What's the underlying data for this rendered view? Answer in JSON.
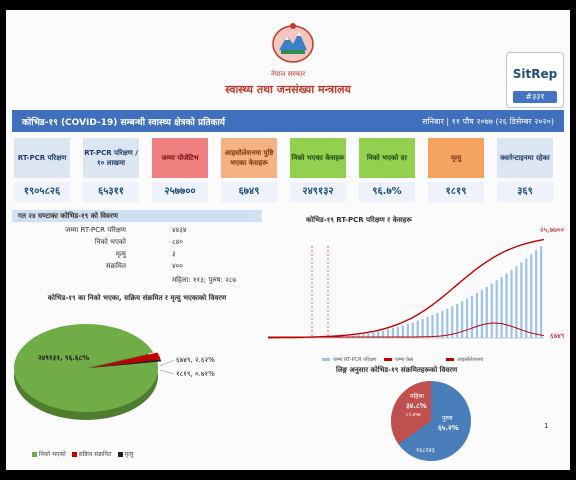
{
  "header": {
    "gov_label": "नेपाल सरकार",
    "ministry": "स्वास्थ्य तथा जनसंख्या मन्त्रालय",
    "sitrep_label": "SitRep",
    "sitrep_number": "#३३१"
  },
  "title_bar": {
    "title": "कोभिड-१९ (COVID-19) सम्बन्धी स्वास्थ्य क्षेत्रको प्रतिकार्य",
    "date": "सनिबार | ११ पौष २०७७ (२६ डिसेम्बर २०२०)"
  },
  "cards": [
    {
      "label": "RT-PCR परिक्षण",
      "value": "१९०५८२६",
      "bg": "#dce6f2",
      "fg": "#1f3d6b"
    },
    {
      "label": "RT-PCR परिक्षण /१० लाखमा",
      "value": "६५३११",
      "bg": "#dce6f2",
      "fg": "#1f3d6b"
    },
    {
      "label": "जम्मा पोजेटिभ",
      "value": "२५७७००",
      "bg": "#f08080",
      "fg": "#7a1010"
    },
    {
      "label": "आइसोलेशनमा पुष्टि भएका केसहरू",
      "value": "६७४९",
      "bg": "#f4b183",
      "fg": "#7a3b10"
    },
    {
      "label": "निको भएका केसहरू",
      "value": "२४९१३२",
      "bg": "#92d050",
      "fg": "#1f4d10"
    },
    {
      "label": "निको भएको दर",
      "value": "९६.७%",
      "bg": "#92d050",
      "fg": "#1f4d10"
    },
    {
      "label": "मृत्यु",
      "value": "१८१९",
      "bg": "#f4a460",
      "fg": "#7a3b10"
    },
    {
      "label": "क्वारेन्टाइनमा रहेका",
      "value": "३६९",
      "bg": "#dce6f2",
      "fg": "#1f3d6b"
    }
  ],
  "last24": {
    "title": "गत २४ घण्टाका कोभिड-१९ को विवरण",
    "rows": [
      {
        "k": "जम्मा RT-PCR परिक्षण",
        "v": "४४३४"
      },
      {
        "k": "निको भएको",
        "v": "८४०"
      },
      {
        "k": "मृत्यु",
        "v": "३"
      },
      {
        "k": "संक्रमित",
        "v": "४००"
      }
    ],
    "gender_note": "महिला: ११३; पुरुष: २८७"
  },
  "pie1": {
    "title": "कोभिड-१९ का निको भएका, सक्रिय संक्रमित र मृत्यु भएकाको विवरण",
    "labels": [
      "२४९१३२, ९६.६८%",
      "६७४९, २.६२%",
      "१८१९, ०.७१%"
    ],
    "legend": [
      "निको भएको",
      "सक्रिय संक्रमित",
      "मृत्यु"
    ],
    "colors": [
      "#70ad47",
      "#c00000",
      "#1f1f1f"
    ]
  },
  "line": {
    "title": "कोभिड-१९ RT-PCR परिक्षण र केसहरू",
    "end_label_top": "२५,७७००",
    "end_label_bottom": "६७४९",
    "legend": [
      "जम्मा RT-PCR परिक्षण",
      "जम्मा केस",
      "आइसोलेशनमा"
    ]
  },
  "pie2": {
    "title": "लिङ्ग अनुसार कोभिड-१९ संक्रमितहरूको विवरण",
    "female_label": "महिला",
    "female_pct": "३४.८%",
    "female_count": "८९,४५७",
    "male_label": "पुरुष",
    "male_pct": "६५.२%",
    "male_count": "१६८२४३",
    "colors": [
      "#4a7ebb",
      "#c0504d"
    ]
  },
  "page_number": "1",
  "chart_data": {
    "type": "pie",
    "title": "कोभिड-१९ का निको भएका, सक्रिय संक्रमित र मृत्यु भएकाको विवरण",
    "categories": [
      "निको भएको",
      "सक्रिय संक्रमित",
      "मृत्यु"
    ],
    "values": [
      249132,
      6749,
      1819
    ]
  }
}
